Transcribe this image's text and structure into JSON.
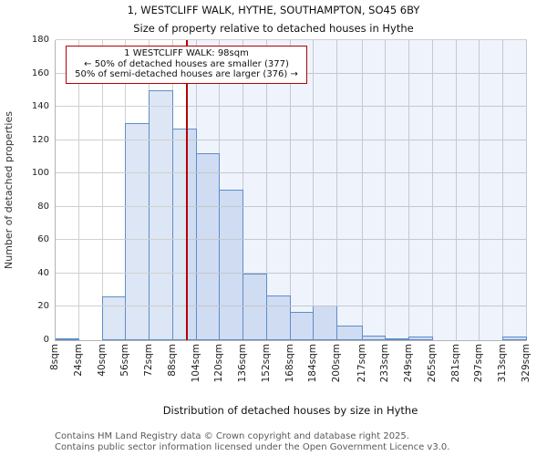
{
  "title": "1, WESTCLIFF WALK, HYTHE, SOUTHAMPTON, SO45 6BY",
  "subtitle": "Size of property relative to detached houses in Hythe",
  "callout": {
    "line1": "1 WESTCLIFF WALK: 98sqm",
    "line2": "← 50% of detached houses are smaller (377)",
    "line3": "50% of semi-detached houses are larger (376) →"
  },
  "footer": {
    "line1": "Contains HM Land Registry data © Crown copyright and database right 2025.",
    "line2": "Contains public sector information licensed under the Open Government Licence v3.0."
  },
  "chart_data": {
    "type": "bar",
    "title": "1, WESTCLIFF WALK, HYTHE, SOUTHAMPTON, SO45 6BY",
    "subtitle": "Size of property relative to detached houses in Hythe",
    "xlabel": "Distribution of detached houses by size in Hythe",
    "ylabel": "Number of detached properties",
    "bin_edges_sqm": [
      8,
      24,
      40,
      56,
      72,
      88,
      104,
      120,
      136,
      152,
      168,
      184,
      200,
      217,
      233,
      249,
      265,
      281,
      297,
      313,
      329
    ],
    "x_tick_labels": [
      "8sqm",
      "24sqm",
      "40sqm",
      "56sqm",
      "72sqm",
      "88sqm",
      "104sqm",
      "120sqm",
      "136sqm",
      "152sqm",
      "168sqm",
      "184sqm",
      "200sqm",
      "217sqm",
      "233sqm",
      "249sqm",
      "265sqm",
      "281sqm",
      "297sqm",
      "313sqm",
      "329sqm"
    ],
    "values": [
      1,
      0,
      26,
      130,
      150,
      127,
      112,
      90,
      40,
      27,
      17,
      21,
      9,
      3,
      1,
      2,
      0,
      0,
      0,
      2
    ],
    "y_ticks": [
      0,
      20,
      40,
      60,
      80,
      100,
      120,
      140,
      160,
      180
    ],
    "ylim": [
      0,
      180
    ],
    "grid": true,
    "marker_value_sqm": 98,
    "marker_label": "1 WESTCLIFF WALK: 98sqm",
    "smaller_count": 377,
    "larger_count": 376,
    "colors": {
      "bar_fill": "#dce6f5",
      "bar_edge": "#5f8dc9",
      "marker_red": "#b40000",
      "shade_right_of_marker": "#eef3fb",
      "gridline": "#d0d0d0",
      "footer_text": "#595959"
    }
  }
}
